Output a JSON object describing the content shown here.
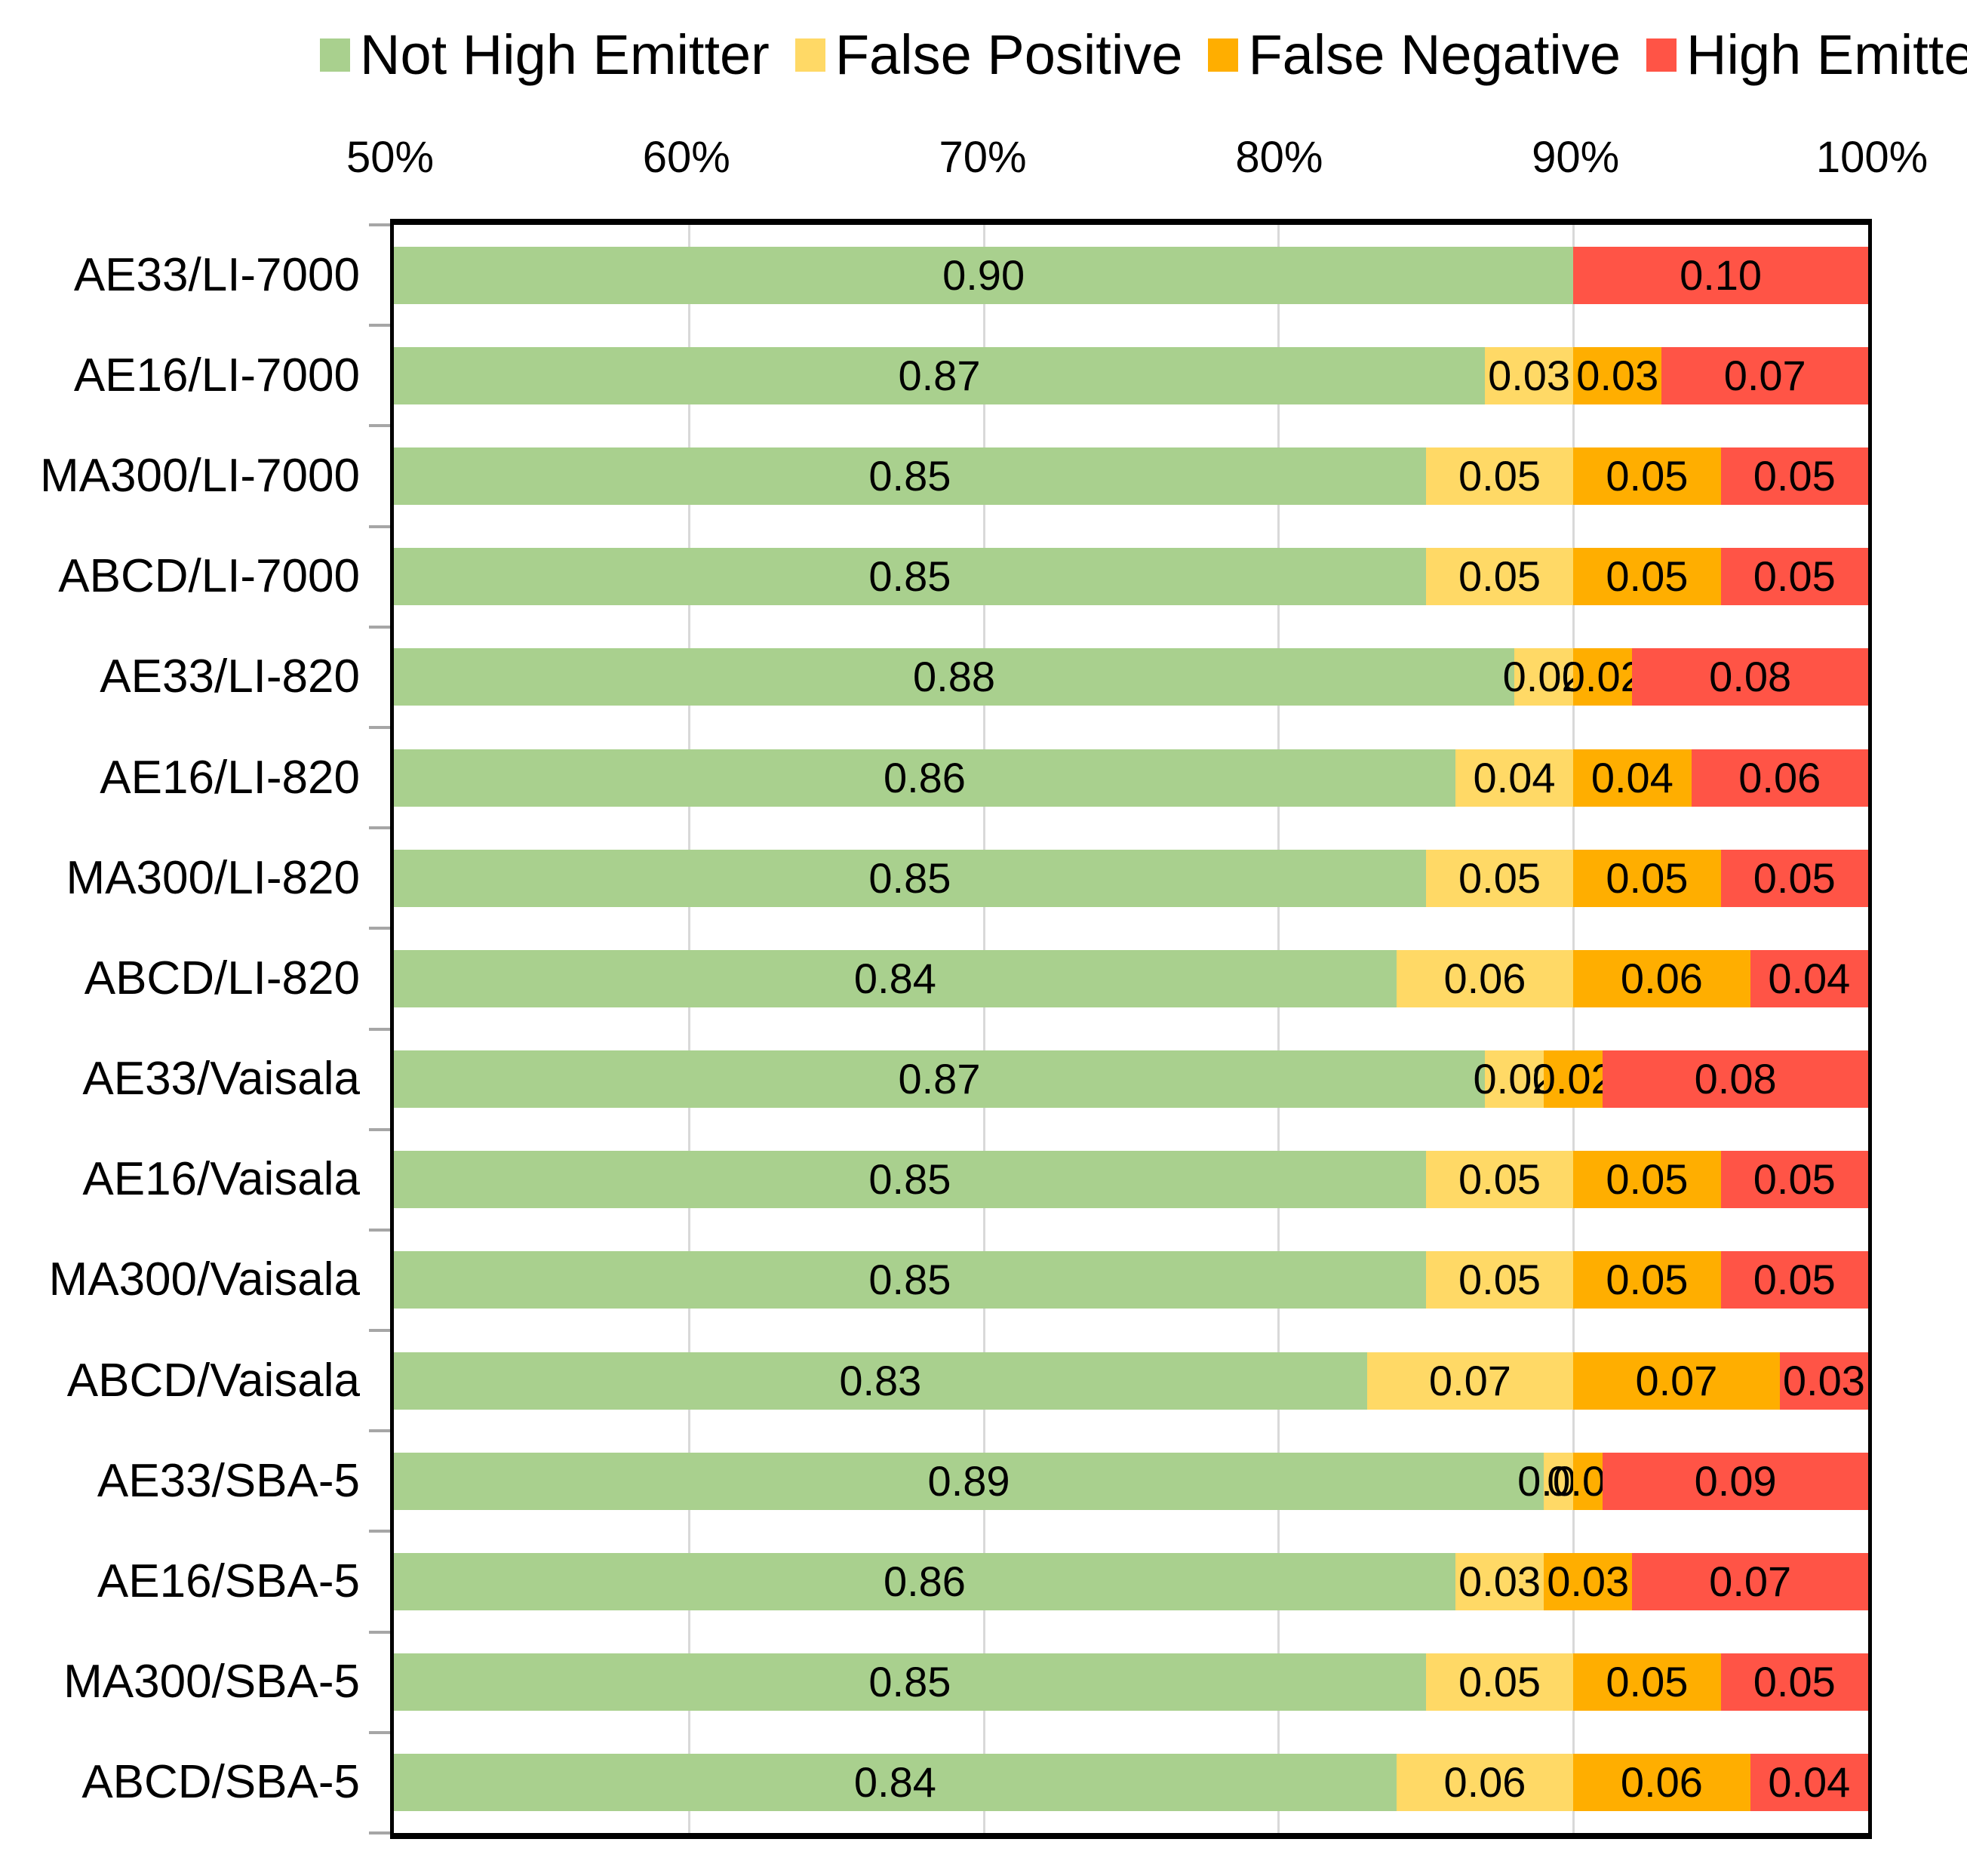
{
  "legend": {
    "items": [
      {
        "label": "Not High Emitter",
        "color": "#A9D08E"
      },
      {
        "label": "False Positive",
        "color": "#FFD966"
      },
      {
        "label": "False Negative",
        "color": "#FFAE00"
      },
      {
        "label": "High Emitter",
        "color": "#FF5446"
      }
    ]
  },
  "x_axis": {
    "tick_labels": [
      "50%",
      "60%",
      "70%",
      "80%",
      "90%",
      "100%"
    ],
    "min_percent": 50,
    "max_percent": 100
  },
  "chart_data": {
    "type": "bar",
    "orientation": "horizontal-stacked",
    "title": "",
    "xlabel": "",
    "ylabel": "",
    "xlim_fraction": [
      0.5,
      1.0
    ],
    "grid": "vertical-light-gray",
    "legend_position": "top",
    "value_label_decimals": 2,
    "categories": [
      "AE33/LI-7000",
      "AE16/LI-7000",
      "MA300/LI-7000",
      "ABCD/LI-7000",
      "AE33/LI-820",
      "AE16/LI-820",
      "MA300/LI-820",
      "ABCD/LI-820",
      "AE33/Vaisala",
      "AE16/Vaisala",
      "MA300/Vaisala",
      "ABCD/Vaisala",
      "AE33/SBA-5",
      "AE16/SBA-5",
      "MA300/SBA-5",
      "ABCD/SBA-5"
    ],
    "series": [
      {
        "name": "Not High Emitter",
        "color": "#A9D08E",
        "values": [
          0.9,
          0.87,
          0.85,
          0.85,
          0.88,
          0.86,
          0.85,
          0.84,
          0.87,
          0.85,
          0.85,
          0.83,
          0.89,
          0.86,
          0.85,
          0.84
        ]
      },
      {
        "name": "False Positive",
        "color": "#FFD966",
        "values": [
          0.0,
          0.03,
          0.05,
          0.05,
          0.02,
          0.04,
          0.05,
          0.06,
          0.02,
          0.05,
          0.05,
          0.07,
          0.01,
          0.03,
          0.05,
          0.06
        ]
      },
      {
        "name": "False Negative",
        "color": "#FFAE00",
        "values": [
          0.0,
          0.03,
          0.05,
          0.05,
          0.02,
          0.04,
          0.05,
          0.06,
          0.02,
          0.05,
          0.05,
          0.07,
          0.01,
          0.03,
          0.05,
          0.06
        ]
      },
      {
        "name": "High Emitter",
        "color": "#FF5446",
        "values": [
          0.1,
          0.07,
          0.05,
          0.05,
          0.08,
          0.06,
          0.05,
          0.04,
          0.08,
          0.05,
          0.05,
          0.03,
          0.09,
          0.07,
          0.05,
          0.04
        ]
      }
    ],
    "colors": {
      "gridline": "#D9D9D9",
      "axis_line": "#000000",
      "category_tick": "#A6A6A6",
      "value_label_text": "#000000"
    }
  }
}
